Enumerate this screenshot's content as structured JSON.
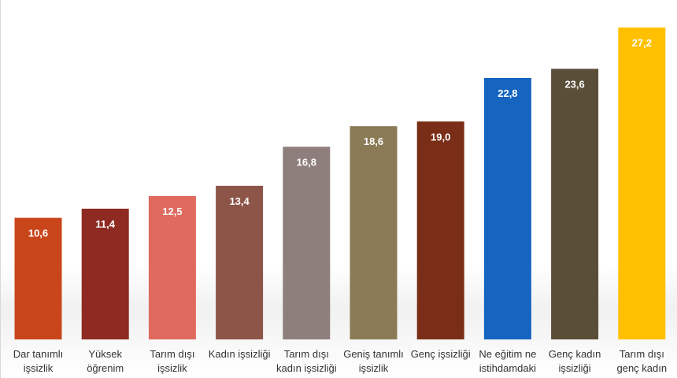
{
  "chart_data": {
    "type": "bar",
    "categories": [
      [
        "Dar tanımlı",
        "işsizlik"
      ],
      [
        "Yüksek",
        "öğrenim"
      ],
      [
        "Tarım dışı",
        "işsizlik"
      ],
      [
        "Kadın işsizliği"
      ],
      [
        "Tarım dışı",
        "kadın işsizliği"
      ],
      [
        "Geniş tanımlı",
        "işsizlik"
      ],
      [
        "Genç işsizliği"
      ],
      [
        "Ne eğitim ne",
        "istihdamdaki"
      ],
      [
        "Genç kadın",
        "işsizliği"
      ],
      [
        "Tarım dışı",
        "genç kadın"
      ]
    ],
    "values": [
      10.6,
      11.4,
      12.5,
      13.4,
      16.8,
      18.6,
      19.0,
      22.8,
      23.6,
      27.2
    ],
    "value_labels": [
      "10,6",
      "11,4",
      "12,5",
      "13,4",
      "16,8",
      "18,6",
      "19,0",
      "22,8",
      "23,6",
      "27,2"
    ],
    "colors": [
      "#C9461B",
      "#8E2A22",
      "#E06A5E",
      "#8C5548",
      "#8E7F7D",
      "#8A7A55",
      "#7A2E18",
      "#1565C0",
      "#5A4E38",
      "#FFC000"
    ],
    "ylim": [
      0,
      28.5
    ],
    "title": "",
    "xlabel": "",
    "ylabel": "",
    "grid": false,
    "legend": "none"
  }
}
